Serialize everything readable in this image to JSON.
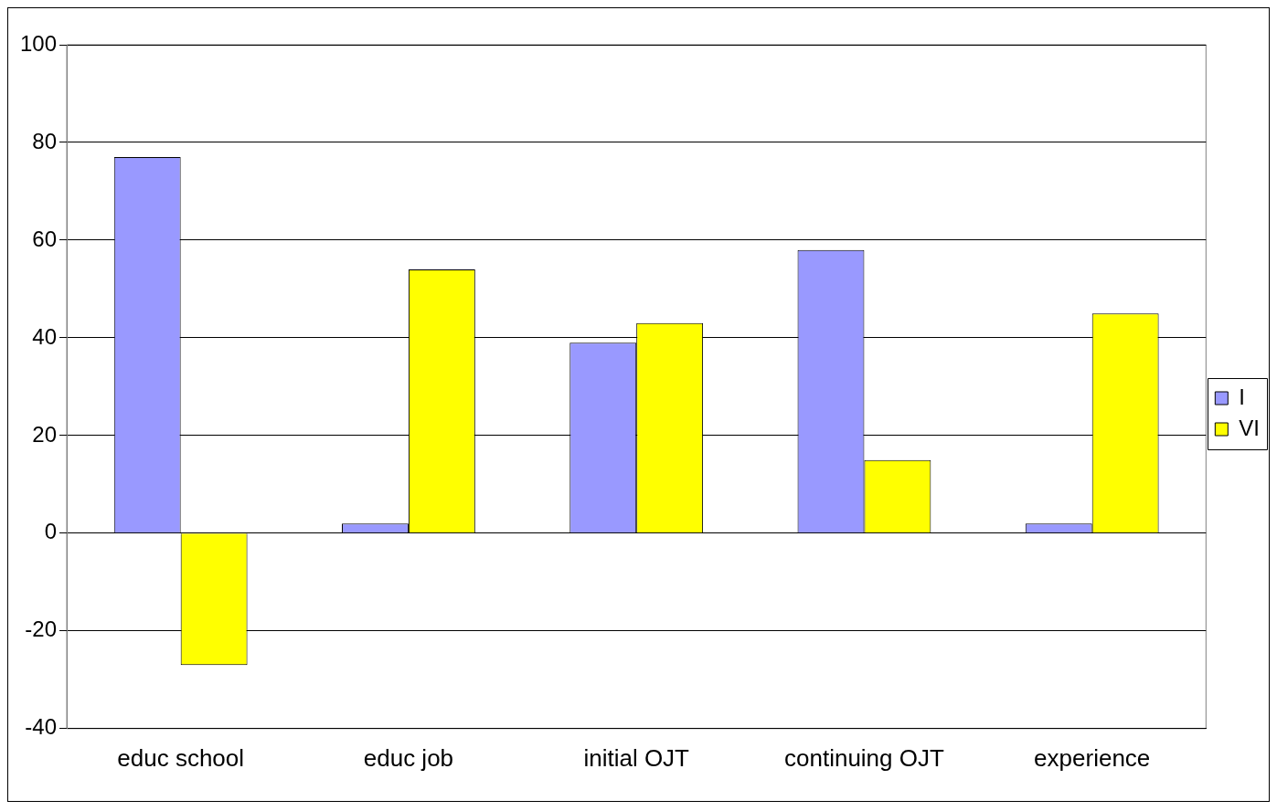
{
  "chart_data": {
    "type": "bar",
    "categories": [
      "educ school",
      "educ job",
      "initial OJT",
      "continuing OJT",
      "experience"
    ],
    "series": [
      {
        "name": "I",
        "color": "#9999ff",
        "values": [
          77,
          2,
          39,
          58,
          2
        ]
      },
      {
        "name": "VI",
        "color": "#ffff00",
        "values": [
          -27,
          54,
          43,
          15,
          45
        ]
      }
    ],
    "ylim": [
      -40,
      100
    ],
    "yticks": [
      -40,
      -20,
      0,
      20,
      40,
      60,
      80,
      100
    ],
    "grid": "y",
    "legend": "right"
  }
}
